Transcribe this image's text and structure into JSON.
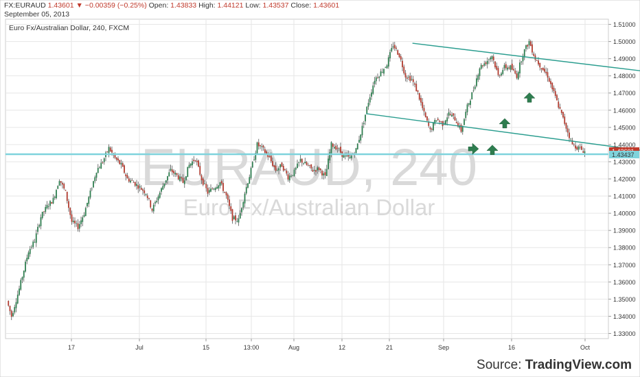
{
  "header": {
    "symbol": "FX:EURAUD",
    "last": "1.43601",
    "change": "▼ −0.00359 (−0.25%)",
    "open_label": "Open:",
    "open": "1.43833",
    "high_label": "High:",
    "high": "1.44121",
    "low_label": "Low:",
    "low": "1.43537",
    "close_label": "Close:",
    "close": "1.43601",
    "date": "September 05, 2013"
  },
  "source": {
    "label": "Source:",
    "brand": "TradingView.com"
  },
  "colors": {
    "up": "#2e7d4f",
    "down": "#b03a2e",
    "wick": "#555555",
    "channel": "#2a9d8f",
    "support": "#7fd3dc",
    "arrow": "#2e7d4f",
    "grid": "#e6e6e6",
    "price_tag": "#c0392b"
  },
  "chart_data": {
    "type": "candlestick",
    "title": "Euro Fx/Australian Dollar, 240, FXCM",
    "watermark_symbol": "EURAUD, 240",
    "watermark_name": "Euro Fx/Australian Dollar",
    "y_ticks": [
      "1.51000",
      "1.50000",
      "1.49000",
      "1.48000",
      "1.47000",
      "1.46000",
      "1.45000",
      "1.44000",
      "1.43000",
      "1.42000",
      "1.41000",
      "1.40000",
      "1.39000",
      "1.38000",
      "1.37000",
      "1.36000",
      "1.35000",
      "1.34000",
      "1.33000"
    ],
    "ylim": [
      1.327,
      1.513
    ],
    "x_ticks": [
      "17",
      "Jul",
      "15",
      "13:00",
      "Aug",
      "12",
      "21",
      "Sep",
      "16",
      "Oct"
    ],
    "price_tags": {
      "last": "1.43601",
      "level": "1.43437"
    },
    "support_level": 1.43437,
    "close_path": [
      [
        0,
        1.349
      ],
      [
        3,
        1.34
      ],
      [
        8,
        1.356
      ],
      [
        14,
        1.378
      ],
      [
        18,
        1.384
      ],
      [
        22,
        1.398
      ],
      [
        26,
        1.404
      ],
      [
        30,
        1.408
      ],
      [
        34,
        1.42
      ],
      [
        38,
        1.412
      ],
      [
        42,
        1.395
      ],
      [
        46,
        1.392
      ],
      [
        50,
        1.4
      ],
      [
        54,
        1.412
      ],
      [
        58,
        1.425
      ],
      [
        62,
        1.43
      ],
      [
        66,
        1.438
      ],
      [
        70,
        1.432
      ],
      [
        74,
        1.428
      ],
      [
        78,
        1.42
      ],
      [
        82,
        1.418
      ],
      [
        86,
        1.415
      ],
      [
        90,
        1.412
      ],
      [
        94,
        1.402
      ],
      [
        98,
        1.41
      ],
      [
        102,
        1.418
      ],
      [
        106,
        1.425
      ],
      [
        110,
        1.422
      ],
      [
        114,
        1.418
      ],
      [
        118,
        1.428
      ],
      [
        122,
        1.432
      ],
      [
        126,
        1.42
      ],
      [
        130,
        1.412
      ],
      [
        134,
        1.415
      ],
      [
        138,
        1.418
      ],
      [
        142,
        1.41
      ],
      [
        146,
        1.397
      ],
      [
        150,
        1.396
      ],
      [
        154,
        1.412
      ],
      [
        158,
        1.425
      ],
      [
        162,
        1.44
      ],
      [
        166,
        1.437
      ],
      [
        170,
        1.432
      ],
      [
        174,
        1.425
      ],
      [
        178,
        1.428
      ],
      [
        182,
        1.421
      ],
      [
        186,
        1.424
      ],
      [
        190,
        1.431
      ],
      [
        194,
        1.428
      ],
      [
        198,
        1.425
      ],
      [
        202,
        1.426
      ],
      [
        206,
        1.421
      ],
      [
        210,
        1.44
      ],
      [
        214,
        1.438
      ],
      [
        218,
        1.433
      ],
      [
        222,
        1.432
      ],
      [
        226,
        1.437
      ],
      [
        230,
        1.45
      ],
      [
        234,
        1.465
      ],
      [
        238,
        1.478
      ],
      [
        242,
        1.482
      ],
      [
        246,
        1.487
      ],
      [
        250,
        1.498
      ],
      [
        254,
        1.492
      ],
      [
        258,
        1.48
      ],
      [
        262,
        1.478
      ],
      [
        266,
        1.47
      ],
      [
        270,
        1.458
      ],
      [
        274,
        1.448
      ],
      [
        278,
        1.455
      ],
      [
        282,
        1.452
      ],
      [
        286,
        1.458
      ],
      [
        290,
        1.455
      ],
      [
        294,
        1.448
      ],
      [
        298,
        1.462
      ],
      [
        302,
        1.472
      ],
      [
        306,
        1.485
      ],
      [
        310,
        1.488
      ],
      [
        314,
        1.492
      ],
      [
        318,
        1.48
      ],
      [
        322,
        1.485
      ],
      [
        326,
        1.485
      ],
      [
        330,
        1.48
      ],
      [
        334,
        1.493
      ],
      [
        338,
        1.5
      ],
      [
        342,
        1.49
      ],
      [
        346,
        1.485
      ],
      [
        350,
        1.48
      ],
      [
        354,
        1.47
      ],
      [
        358,
        1.46
      ],
      [
        362,
        1.45
      ],
      [
        366,
        1.44
      ],
      [
        370,
        1.438
      ],
      [
        374,
        1.436
      ]
    ],
    "channel_upper": [
      [
        262.5,
        1.499
      ],
      [
        520,
        1.471
      ]
    ],
    "channel_lower": [
      [
        232.5,
        1.458
      ],
      [
        470,
        1.4295
      ]
    ],
    "arrows": [
      [
        432,
        1.4375
      ],
      [
        453,
        1.4365
      ],
      [
        458,
        1.452
      ],
      [
        482,
        1.467
      ]
    ]
  }
}
